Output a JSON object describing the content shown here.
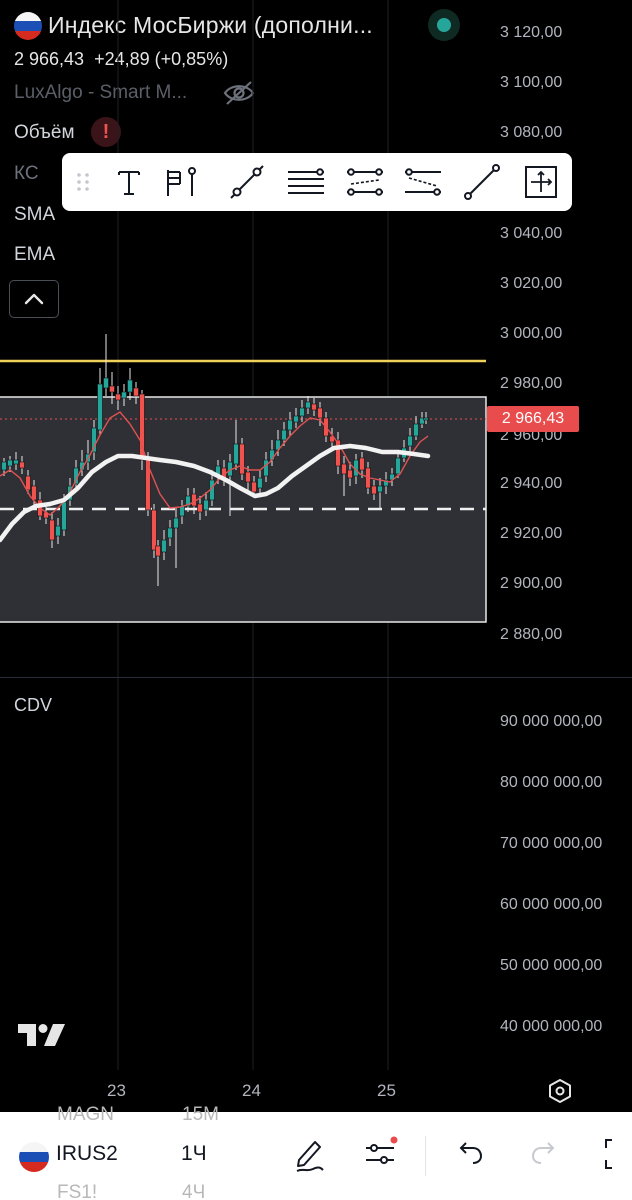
{
  "header": {
    "title": "Индекс МосБиржи (дополни...",
    "last_price": "2 966,43",
    "change": "+24,89 (+0,85%)",
    "indicator_luxalgo": "LuxAlgo - Smart M...",
    "indicators": [
      "Объём",
      "КС",
      "SMA",
      "EMA"
    ]
  },
  "toolbar": {
    "tools": [
      "drag-handle-icon",
      "text-tool-icon",
      "anchored-note-icon",
      "trend-line-icon",
      "horizontal-lines-icon",
      "parallel-channel-icon",
      "regression-channel-icon",
      "ray-icon",
      "measure-icon"
    ]
  },
  "price_axis": {
    "labels": [
      "3 120,00",
      "3 100,00",
      "3 080,00",
      "3 040,00",
      "3 020,00",
      "3 000,00",
      "2 980,00",
      "2 960,00",
      "2 940,00",
      "2 920,00",
      "2 900,00",
      "2 880,00"
    ],
    "current_price_badge": "2 966,43"
  },
  "cdv_panel": {
    "label": "CDV",
    "axis_labels": [
      "90 000 000,00",
      "80 000 000,00",
      "70 000 000,00",
      "60 000 000,00",
      "50 000 000,00",
      "40 000 000,00"
    ]
  },
  "time_axis": {
    "labels": [
      "23",
      "24",
      "25"
    ]
  },
  "bottom_bar": {
    "symbol": "IRUS2",
    "timeframe": "1Ч",
    "ghost_above_symbol": "MAGN",
    "ghost_below_symbol": "FS1!",
    "ghost_above_tf": "15М",
    "ghost_below_tf": "4Ч"
  },
  "colors": {
    "up": "#26a69a",
    "down": "#ef5350",
    "yellow_level": "#f0d15a",
    "accent_red": "#e84c4c"
  }
}
